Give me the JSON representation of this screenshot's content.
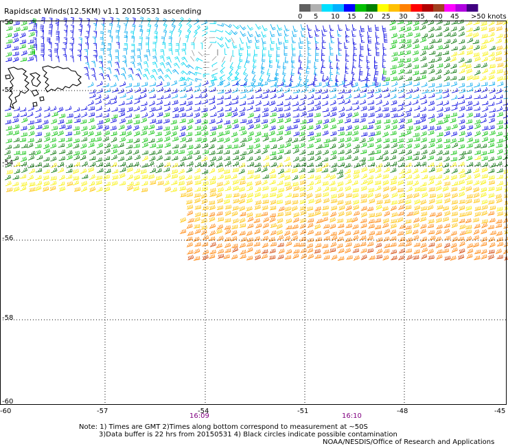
{
  "title": "Rapidscat Winds(12.5KM) v1.1 20150531 ascending",
  "legend": {
    "ticks": [
      "0",
      "5",
      "10",
      "15",
      "20",
      "25",
      "30",
      "35",
      "40",
      "45",
      ">50 knots"
    ],
    "colors": [
      "#606060",
      "#b0b0b0",
      "#00e0ff",
      "#00b0ff",
      "#0000ff",
      "#00c000",
      "#008000",
      "#ffff00",
      "#ffc000",
      "#ff8000",
      "#ff0000",
      "#b00000",
      "#a04020",
      "#ff00ff",
      "#b000e0",
      "#400080"
    ]
  },
  "lat_labels": [
    "-50",
    "-52",
    "-54",
    "-56",
    "-58",
    "-60"
  ],
  "lon_labels": [
    "-60",
    "-57",
    "-54",
    "-51",
    "-48",
    "-45"
  ],
  "times": [
    "16:09",
    "16:10"
  ],
  "notes": {
    "line1": "Note: 1) Times are GMT 2)Times along bottom correspond to measurement at ~50S",
    "line2": "3)Data buffer is 22 hrs from 20150531 4) Black circles indicate possible contamination",
    "line3": "NOAA/NESDIS/Office of Research and Applications"
  },
  "colors": {
    "grid": "#000000",
    "time_label": "#800080",
    "coast": "#000000"
  }
}
